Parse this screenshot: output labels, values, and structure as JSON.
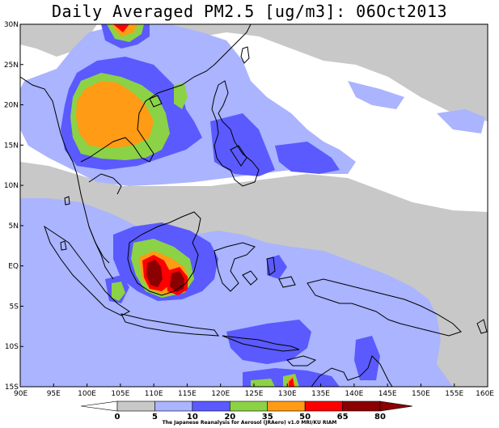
{
  "title": "Daily Averaged PM2.5 [ug/m3]: 06Oct2013",
  "credit": "The Japanese Reanalysis for Aerosol (JRAero) v1.0 MRI/KU RIAM",
  "lat_labels": [
    "30N",
    "25N",
    "20N",
    "15N",
    "10N",
    "5N",
    "EQ",
    "5S",
    "10S",
    "15S"
  ],
  "lon_labels": [
    "90E",
    "95E",
    "100E",
    "105E",
    "110E",
    "115E",
    "120E",
    "125E",
    "130E",
    "135E",
    "140E",
    "145E",
    "150E",
    "155E",
    "160E"
  ],
  "colorbar": {
    "labels": [
      "0",
      "5",
      "10",
      "20",
      "35",
      "50",
      "65",
      "80"
    ],
    "colors": [
      "#ffffff",
      "#c8c8c8",
      "#aab4ff",
      "#5a5aff",
      "#8cd246",
      "#ff9b14",
      "#ff0000",
      "#8b0000"
    ]
  }
}
